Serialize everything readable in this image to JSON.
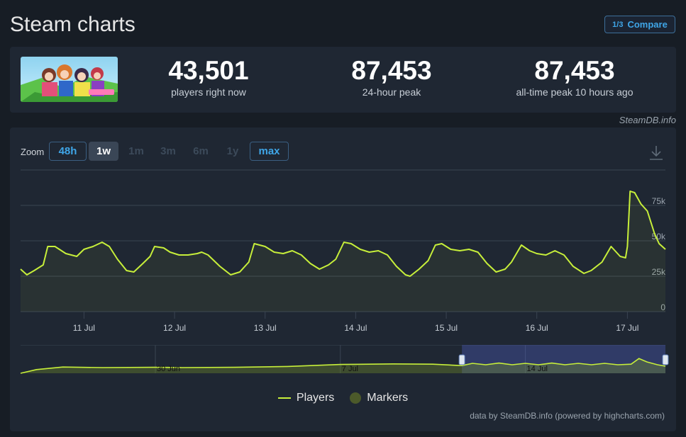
{
  "header": {
    "title": "Steam charts",
    "compare_label": "Compare",
    "compare_icon_text": "1/3"
  },
  "stats": [
    {
      "value": "43,501",
      "label": "players right now"
    },
    {
      "value": "87,453",
      "label": "24-hour peak"
    },
    {
      "value": "87,453",
      "label": "all-time peak 10 hours ago"
    }
  ],
  "credit_top": "SteamDB.info",
  "zoom": {
    "label": "Zoom",
    "buttons": [
      {
        "label": "48h",
        "state": "available"
      },
      {
        "label": "1w",
        "state": "selected"
      },
      {
        "label": "1m",
        "state": "disabled"
      },
      {
        "label": "3m",
        "state": "disabled"
      },
      {
        "label": "6m",
        "state": "disabled"
      },
      {
        "label": "1y",
        "state": "disabled"
      },
      {
        "label": "max",
        "state": "available"
      }
    ]
  },
  "legend": {
    "players": "Players",
    "markers": "Markers"
  },
  "credit_bottom": "data by SteamDB.info (powered by highcharts.com)",
  "colors": {
    "line": "#c7ef3a",
    "background": "#171d25",
    "panel": "#1f2733",
    "accent": "#3fa6e8",
    "marker": "#4c5a2a"
  },
  "chart_data": {
    "type": "line",
    "series": [
      {
        "name": "Players",
        "points": [
          [
            10.3,
            30000
          ],
          [
            10.37,
            26000
          ],
          [
            10.45,
            29000
          ],
          [
            10.55,
            33000
          ],
          [
            10.6,
            46000
          ],
          [
            10.68,
            46000
          ],
          [
            10.8,
            41000
          ],
          [
            10.92,
            39000
          ],
          [
            11.0,
            44000
          ],
          [
            11.1,
            46000
          ],
          [
            11.2,
            49000
          ],
          [
            11.28,
            46000
          ],
          [
            11.37,
            37000
          ],
          [
            11.47,
            29000
          ],
          [
            11.55,
            28000
          ],
          [
            11.65,
            34000
          ],
          [
            11.73,
            39000
          ],
          [
            11.78,
            46000
          ],
          [
            11.88,
            45000
          ],
          [
            11.95,
            42000
          ],
          [
            12.05,
            40000
          ],
          [
            12.15,
            40000
          ],
          [
            12.25,
            41000
          ],
          [
            12.3,
            42000
          ],
          [
            12.37,
            40000
          ],
          [
            12.5,
            32000
          ],
          [
            12.62,
            26000
          ],
          [
            12.72,
            28000
          ],
          [
            12.82,
            35000
          ],
          [
            12.88,
            48000
          ],
          [
            13.0,
            46000
          ],
          [
            13.1,
            42000
          ],
          [
            13.2,
            41000
          ],
          [
            13.3,
            43000
          ],
          [
            13.4,
            40000
          ],
          [
            13.5,
            34000
          ],
          [
            13.6,
            30000
          ],
          [
            13.7,
            33000
          ],
          [
            13.78,
            37000
          ],
          [
            13.87,
            49000
          ],
          [
            13.95,
            48000
          ],
          [
            14.05,
            44000
          ],
          [
            14.15,
            42000
          ],
          [
            14.25,
            43000
          ],
          [
            14.35,
            40000
          ],
          [
            14.45,
            32000
          ],
          [
            14.55,
            26000
          ],
          [
            14.6,
            25000
          ],
          [
            14.7,
            30000
          ],
          [
            14.8,
            36000
          ],
          [
            14.88,
            47000
          ],
          [
            14.95,
            48000
          ],
          [
            15.05,
            44000
          ],
          [
            15.15,
            43000
          ],
          [
            15.25,
            44000
          ],
          [
            15.35,
            42000
          ],
          [
            15.45,
            34000
          ],
          [
            15.55,
            28000
          ],
          [
            15.65,
            30000
          ],
          [
            15.72,
            35000
          ],
          [
            15.83,
            47000
          ],
          [
            15.92,
            43000
          ],
          [
            16.0,
            41000
          ],
          [
            16.1,
            40000
          ],
          [
            16.2,
            43000
          ],
          [
            16.3,
            40000
          ],
          [
            16.4,
            32000
          ],
          [
            16.52,
            27000
          ],
          [
            16.6,
            29000
          ],
          [
            16.72,
            35000
          ],
          [
            16.82,
            46000
          ],
          [
            16.92,
            39000
          ],
          [
            16.98,
            38000
          ],
          [
            17.0,
            46000
          ],
          [
            17.03,
            85000
          ],
          [
            17.08,
            84000
          ],
          [
            17.15,
            76000
          ],
          [
            17.22,
            71000
          ],
          [
            17.3,
            55000
          ],
          [
            17.35,
            48000
          ],
          [
            17.42,
            44000
          ]
        ]
      }
    ],
    "x_tick_labels": [
      "11 Jul",
      "12 Jul",
      "13 Jul",
      "14 Jul",
      "15 Jul",
      "16 Jul",
      "17 Jul"
    ],
    "x_ticks": [
      11,
      12,
      13,
      14,
      15,
      16,
      17
    ],
    "y_tick_labels": [
      "0",
      "25k",
      "50k",
      "75k"
    ],
    "y_ticks": [
      0,
      25000,
      50000,
      75000
    ],
    "xlim": [
      10.3,
      17.42
    ],
    "ylim": [
      0,
      100000
    ],
    "grid": true,
    "legend_position": "bottom",
    "navigator": {
      "tick_labels": [
        "30 Jun",
        "7 Jul",
        "14 Jul"
      ],
      "ticks": [
        30,
        37,
        44
      ],
      "xlim": [
        24.9,
        49.3
      ],
      "selected_range": [
        41.6,
        49.3
      ],
      "points": [
        [
          24.9,
          0
        ],
        [
          25.5,
          1300
        ],
        [
          26.5,
          2200
        ],
        [
          28,
          2000
        ],
        [
          30,
          2100
        ],
        [
          31,
          2000
        ],
        [
          33,
          2100
        ],
        [
          35,
          2400
        ],
        [
          37,
          3100
        ],
        [
          39,
          3300
        ],
        [
          40.5,
          3200
        ],
        [
          41.6,
          2700
        ],
        [
          42,
          3500
        ],
        [
          42.5,
          3000
        ],
        [
          43,
          3600
        ],
        [
          43.5,
          3000
        ],
        [
          44,
          3500
        ],
        [
          44.5,
          3000
        ],
        [
          45,
          3600
        ],
        [
          45.5,
          3000
        ],
        [
          46,
          3500
        ],
        [
          46.5,
          3000
        ],
        [
          47,
          3500
        ],
        [
          47.5,
          3000
        ],
        [
          48,
          3200
        ],
        [
          48.3,
          5200
        ],
        [
          48.6,
          4000
        ],
        [
          49.0,
          3000
        ],
        [
          49.3,
          2500
        ]
      ]
    }
  }
}
